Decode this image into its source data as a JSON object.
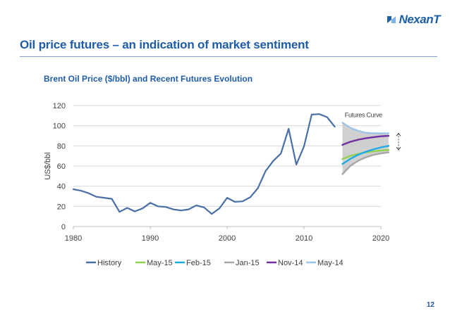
{
  "header": {
    "logo_text": "NexanT",
    "title": "Oil price futures – an indication of market sentiment"
  },
  "page_number": "12",
  "colors": {
    "brand": "#1f5ca8",
    "band": "#c8c8c8"
  },
  "chart_data": {
    "type": "line",
    "title": "Brent Oil Price ($/bbl) and Recent Futures Evolution",
    "xlabel": "",
    "ylabel": "US$/bbl",
    "xlim": [
      1980,
      2020
    ],
    "ylim": [
      0,
      120
    ],
    "xticks": [
      1980,
      1990,
      2000,
      2010,
      2020
    ],
    "yticks": [
      0,
      20,
      40,
      60,
      80,
      100,
      120
    ],
    "grid": "horizontal",
    "legend_position": "bottom",
    "annotation": "Futures Curve",
    "series": [
      {
        "name": "History",
        "color": "#4a6fa5",
        "x": [
          1980,
          1981,
          1982,
          1983,
          1984,
          1985,
          1986,
          1987,
          1988,
          1989,
          1990,
          1991,
          1992,
          1993,
          1994,
          1995,
          1996,
          1997,
          1998,
          1999,
          2000,
          2001,
          2002,
          2003,
          2004,
          2005,
          2006,
          2007,
          2008,
          2009,
          2010,
          2011,
          2012,
          2013,
          2014
        ],
        "y": [
          37,
          35.5,
          33,
          29.5,
          28.5,
          27.5,
          14.5,
          18.5,
          15,
          18,
          23.5,
          20,
          19.5,
          17,
          16,
          17,
          21,
          19,
          12.5,
          18,
          28.5,
          24.5,
          25,
          29,
          38,
          55,
          65,
          72.5,
          97,
          61.5,
          79.5,
          111,
          111.5,
          108.5,
          99
        ]
      },
      {
        "name": "May-15",
        "color": "#92d050",
        "x": [
          2015,
          2016,
          2017,
          2018,
          2019,
          2020,
          2021
        ],
        "y": [
          67,
          70,
          72,
          73.5,
          74.5,
          75.5,
          76
        ]
      },
      {
        "name": "Feb-15",
        "color": "#1eaae7",
        "x": [
          2015,
          2016,
          2017,
          2018,
          2019,
          2020,
          2021
        ],
        "y": [
          62,
          67,
          71,
          74,
          76.5,
          78.5,
          80
        ]
      },
      {
        "name": "Jan-15",
        "color": "#a6a6a6",
        "x": [
          2015,
          2016,
          2017,
          2018,
          2019,
          2020,
          2021
        ],
        "y": [
          52,
          60,
          65,
          68.5,
          71,
          72.5,
          73.5
        ]
      },
      {
        "name": "Nov-14",
        "color": "#7030a0",
        "x": [
          2015,
          2016,
          2017,
          2018,
          2019,
          2020,
          2021
        ],
        "y": [
          81,
          84,
          86,
          87.5,
          88.5,
          89.5,
          90
        ]
      },
      {
        "name": "May-14",
        "color": "#9dc3e6",
        "x": [
          2015,
          2016,
          2017,
          2018,
          2019,
          2020,
          2021
        ],
        "y": [
          103,
          98,
          95,
          93,
          92.5,
          92.5,
          92.5
        ]
      }
    ]
  }
}
